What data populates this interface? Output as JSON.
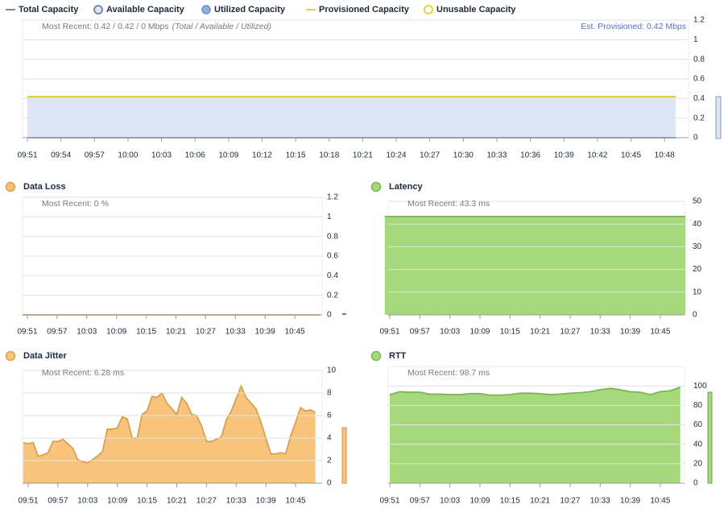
{
  "chart_data": [
    {
      "type": "area",
      "annotations": [
        "Most Recent: 0.42 / 0.42 / 0 Mbps",
        "(Total / Available / Utilized)",
        "Est. Provisioned: 0.42 Mbps"
      ],
      "x": [
        "09:51",
        "09:54",
        "09:57",
        "10:00",
        "10:03",
        "10:06",
        "10:09",
        "10:12",
        "10:15",
        "10:18",
        "10:21",
        "10:24",
        "10:27",
        "10:30",
        "10:33",
        "10:36",
        "10:39",
        "10:42",
        "10:45",
        "10:48",
        "10:49"
      ],
      "xticks": [
        "09:51",
        "09:54",
        "09:57",
        "10:00",
        "10:03",
        "10:06",
        "10:09",
        "10:12",
        "10:15",
        "10:18",
        "10:21",
        "10:24",
        "10:27",
        "10:30",
        "10:33",
        "10:36",
        "10:39",
        "10:42",
        "10:45",
        "10:48"
      ],
      "ylim": [
        0,
        1.2
      ],
      "yticks": [
        0,
        0.2,
        0.4,
        0.6,
        0.8,
        1,
        1.2
      ],
      "grid": true,
      "legend": "top-left",
      "series": [
        {
          "name": "Total Capacity",
          "marker": "line",
          "draw": "line",
          "color": "#6d8cb8",
          "values": [
            0.42,
            0.42,
            0.42,
            0.42,
            0.42,
            0.42,
            0.42,
            0.42,
            0.42,
            0.42,
            0.42,
            0.42,
            0.42,
            0.42,
            0.42,
            0.42,
            0.42,
            0.42,
            0.42,
            0.42,
            0.42
          ]
        },
        {
          "name": "Available Capacity",
          "marker": "ring",
          "draw": "area",
          "color": "#7d8aa6",
          "fill": "#dce6f4",
          "values": [
            0.42,
            0.42,
            0.42,
            0.42,
            0.42,
            0.42,
            0.42,
            0.42,
            0.42,
            0.42,
            0.42,
            0.42,
            0.42,
            0.42,
            0.42,
            0.42,
            0.42,
            0.42,
            0.42,
            0.42,
            0.42
          ]
        },
        {
          "name": "Utilized Capacity",
          "marker": "dot",
          "draw": "area",
          "color": "#6d8cb8",
          "fill": "#8db0e8",
          "values": [
            0,
            0,
            0,
            0,
            0,
            0,
            0,
            0,
            0,
            0,
            0,
            0,
            0,
            0,
            0,
            0,
            0,
            0,
            0,
            0,
            0
          ]
        },
        {
          "name": "Provisioned Capacity",
          "marker": "line",
          "draw": "line",
          "color": "#e6d43c",
          "values": [
            0.42,
            0.42,
            0.42,
            0.42,
            0.42,
            0.42,
            0.42,
            0.42,
            0.42,
            0.42,
            0.42,
            0.42,
            0.42,
            0.42,
            0.42,
            0.42,
            0.42,
            0.42,
            0.42,
            0.42,
            0.42
          ]
        },
        {
          "name": "Unusable Capacity",
          "marker": "ring",
          "draw": "line",
          "color": "#e6d43c",
          "values": [
            null,
            null,
            null,
            null,
            null,
            null,
            null,
            null,
            null,
            null,
            null,
            null,
            null,
            null,
            null,
            null,
            null,
            null,
            null,
            null,
            null
          ]
        }
      ]
    },
    {
      "type": "line",
      "title": "Data Loss",
      "annotations": [
        "Most Recent: 0 %"
      ],
      "x": [
        "09:50",
        "09:51",
        "09:57",
        "10:03",
        "10:09",
        "10:15",
        "10:21",
        "10:27",
        "10:33",
        "10:39",
        "10:45",
        "10:50"
      ],
      "xticks": [
        "09:51",
        "09:57",
        "10:03",
        "10:09",
        "10:15",
        "10:21",
        "10:27",
        "10:33",
        "10:39",
        "10:45"
      ],
      "values": [
        0,
        0,
        0,
        0,
        0,
        0,
        0,
        0,
        0,
        0,
        0,
        0
      ],
      "color": "#f5c07a",
      "line_color": "#d9a04e",
      "ylim": [
        0,
        1.2
      ],
      "yticks": [
        0,
        0.2,
        0.4,
        0.6,
        0.8,
        1,
        1.2
      ],
      "grid": true
    },
    {
      "type": "area",
      "title": "Latency",
      "annotations": [
        "Most Recent: 43.3 ms"
      ],
      "x": [
        "09:50",
        "09:51",
        "09:57",
        "10:03",
        "10:09",
        "10:15",
        "10:21",
        "10:27",
        "10:33",
        "10:39",
        "10:45",
        "10:50"
      ],
      "xticks": [
        "09:51",
        "09:57",
        "10:03",
        "10:09",
        "10:15",
        "10:21",
        "10:27",
        "10:33",
        "10:39",
        "10:45"
      ],
      "values": [
        43.3,
        43.3,
        43.3,
        43.3,
        43.3,
        43.3,
        43.3,
        43.3,
        43.3,
        43.3,
        43.3,
        43.3
      ],
      "color": "#a6d87c",
      "line_color": "#78b850",
      "ylim": [
        0,
        50
      ],
      "yticks": [
        0,
        10,
        20,
        30,
        40,
        50
      ],
      "grid": true
    },
    {
      "type": "area",
      "title": "Data Jitter",
      "annotations": [
        "Most Recent: 6.28 ms"
      ],
      "x": [
        "09:50",
        "09:51",
        "09:52",
        "09:53",
        "09:54",
        "09:55",
        "09:56",
        "09:57",
        "09:58",
        "09:59",
        "10:00",
        "10:01",
        "10:02",
        "10:03",
        "10:04",
        "10:05",
        "10:06",
        "10:07",
        "10:08",
        "10:09",
        "10:10",
        "10:11",
        "10:12",
        "10:13",
        "10:14",
        "10:15",
        "10:16",
        "10:17",
        "10:18",
        "10:19",
        "10:20",
        "10:21",
        "10:22",
        "10:23",
        "10:24",
        "10:25",
        "10:26",
        "10:27",
        "10:28",
        "10:29",
        "10:30",
        "10:31",
        "10:32",
        "10:33",
        "10:34",
        "10:35",
        "10:36",
        "10:37",
        "10:38",
        "10:39",
        "10:40",
        "10:41",
        "10:42",
        "10:43",
        "10:44",
        "10:45",
        "10:46",
        "10:47",
        "10:48",
        "10:49"
      ],
      "xticks": [
        "09:51",
        "09:57",
        "10:03",
        "10:09",
        "10:15",
        "10:21",
        "10:27",
        "10:33",
        "10:39",
        "10:45"
      ],
      "values": [
        3.6,
        3.5,
        3.6,
        2.4,
        2.5,
        2.7,
        3.7,
        3.7,
        3.9,
        3.5,
        3.1,
        2.1,
        1.9,
        1.8,
        2.1,
        2.4,
        2.8,
        4.8,
        4.8,
        4.9,
        5.9,
        5.7,
        4.0,
        4.0,
        6.1,
        6.4,
        7.7,
        7.6,
        8.0,
        7.1,
        6.6,
        6.1,
        7.6,
        7.1,
        6.1,
        6.0,
        5.1,
        3.7,
        3.7,
        3.9,
        4.1,
        5.6,
        6.4,
        7.5,
        8.6,
        7.6,
        7.1,
        6.6,
        5.4,
        4.0,
        2.6,
        2.6,
        2.7,
        2.6,
        4.2,
        5.4,
        6.7,
        6.4,
        6.5,
        6.28
      ],
      "color": "#f8c47c",
      "line_color": "#d9a04e",
      "ylim": [
        0,
        10
      ],
      "yticks": [
        0,
        2,
        4,
        6,
        8,
        10
      ],
      "grid": true
    },
    {
      "type": "area",
      "title": "RTT",
      "annotations": [
        "Most Recent: 98.7 ms"
      ],
      "x": [
        "09:51",
        "09:53",
        "09:55",
        "09:57",
        "09:59",
        "10:01",
        "10:03",
        "10:05",
        "10:07",
        "10:09",
        "10:11",
        "10:13",
        "10:15",
        "10:17",
        "10:19",
        "10:21",
        "10:23",
        "10:25",
        "10:27",
        "10:29",
        "10:31",
        "10:33",
        "10:35",
        "10:37",
        "10:39",
        "10:41",
        "10:43",
        "10:45",
        "10:47",
        "10:49"
      ],
      "xticks": [
        "09:51",
        "09:57",
        "10:03",
        "10:09",
        "10:15",
        "10:21",
        "10:27",
        "10:33",
        "10:39",
        "10:45"
      ],
      "values": [
        91,
        94,
        93.5,
        93.5,
        91.5,
        91.5,
        91,
        91,
        92,
        92,
        90.5,
        90.5,
        91,
        92.5,
        92.5,
        92,
        91,
        91.5,
        92.5,
        93,
        94,
        96,
        97.5,
        96,
        94,
        93.5,
        91,
        94,
        95,
        98.7
      ],
      "color": "#a6d87c",
      "line_color": "#78b850",
      "ylim": [
        0,
        120
      ],
      "yticks": [
        0,
        20,
        40,
        60,
        80,
        100
      ],
      "grid": true
    }
  ]
}
